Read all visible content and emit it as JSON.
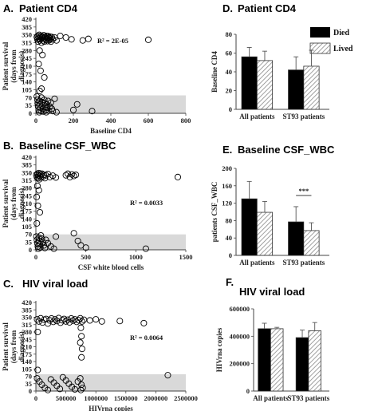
{
  "legend": {
    "died": "Died",
    "lived": "Lived"
  },
  "panels": {
    "A": {
      "label": "A.",
      "title": "Patient CD4"
    },
    "B": {
      "label": "B.",
      "title": "Baseline CSF_WBC"
    },
    "C": {
      "label": "C.",
      "title": "HIV viral load"
    },
    "D": {
      "label": "D.",
      "title": "Patient CD4"
    },
    "E": {
      "label": "E.",
      "title": "Baseline CSF_WBC"
    },
    "F": {
      "label": "F.",
      "title": "HIV viral load"
    }
  },
  "colors": {
    "died": "#000000",
    "lived_hatch": "#888888",
    "band": "#d9d9d9"
  },
  "chart_data": [
    {
      "id": "A",
      "type": "scatter",
      "title": "Patient CD4",
      "xlabel": "Baseline CD4",
      "ylabel": "Patient survival (days from diagnosis)",
      "xlim": [
        0,
        800
      ],
      "ylim": [
        0,
        420
      ],
      "xticks": [
        0,
        200,
        400,
        600,
        800
      ],
      "yticks": [
        0,
        35,
        70,
        105,
        140,
        175,
        210,
        245,
        280,
        315,
        350,
        385,
        420
      ],
      "band": [
        0,
        80
      ],
      "annotation": "R² = 2E-05",
      "points": [
        [
          5,
          340
        ],
        [
          8,
          330
        ],
        [
          10,
          345
        ],
        [
          12,
          320
        ],
        [
          15,
          335
        ],
        [
          18,
          350
        ],
        [
          20,
          325
        ],
        [
          22,
          340
        ],
        [
          25,
          330
        ],
        [
          28,
          345
        ],
        [
          30,
          315
        ],
        [
          32,
          338
        ],
        [
          35,
          342
        ],
        [
          38,
          325
        ],
        [
          40,
          335
        ],
        [
          42,
          348
        ],
        [
          45,
          320
        ],
        [
          48,
          332
        ],
        [
          50,
          340
        ],
        [
          55,
          328
        ],
        [
          58,
          345
        ],
        [
          60,
          336
        ],
        [
          62,
          322
        ],
        [
          65,
          344
        ],
        [
          68,
          330
        ],
        [
          70,
          338
        ],
        [
          72,
          326
        ],
        [
          75,
          342
        ],
        [
          78,
          334
        ],
        [
          80,
          320
        ],
        [
          85,
          340
        ],
        [
          90,
          330
        ],
        [
          100,
          338
        ],
        [
          110,
          325
        ],
        [
          130,
          345
        ],
        [
          160,
          338
        ],
        [
          190,
          330
        ],
        [
          250,
          325
        ],
        [
          280,
          332
        ],
        [
          600,
          328
        ],
        [
          20,
          280
        ],
        [
          35,
          260
        ],
        [
          15,
          220
        ],
        [
          25,
          190
        ],
        [
          45,
          160
        ],
        [
          5,
          75
        ],
        [
          8,
          60
        ],
        [
          10,
          45
        ],
        [
          12,
          30
        ],
        [
          15,
          15
        ],
        [
          18,
          5
        ],
        [
          20,
          55
        ],
        [
          22,
          40
        ],
        [
          25,
          25
        ],
        [
          28,
          10
        ],
        [
          30,
          70
        ],
        [
          32,
          50
        ],
        [
          35,
          35
        ],
        [
          38,
          20
        ],
        [
          40,
          8
        ],
        [
          45,
          60
        ],
        [
          48,
          45
        ],
        [
          50,
          30
        ],
        [
          52,
          15
        ],
        [
          55,
          5
        ],
        [
          58,
          40
        ],
        [
          60,
          25
        ],
        [
          65,
          55
        ],
        [
          70,
          12
        ],
        [
          75,
          30
        ],
        [
          80,
          48
        ],
        [
          85,
          20
        ],
        [
          90,
          10
        ],
        [
          100,
          65
        ],
        [
          110,
          5
        ],
        [
          20,
          100
        ],
        [
          30,
          110
        ],
        [
          200,
          15
        ],
        [
          220,
          40
        ],
        [
          300,
          10
        ]
      ]
    },
    {
      "id": "B",
      "type": "scatter",
      "title": "Baseline CSF_WBC",
      "xlabel": "CSF white blood cells",
      "ylabel": "Patient survival (days from diagnosis)",
      "xlim": [
        0,
        1500
      ],
      "ylim": [
        0,
        420
      ],
      "xticks": [
        0,
        500,
        1000,
        1500
      ],
      "yticks": [
        0,
        35,
        70,
        105,
        140,
        175,
        210,
        245,
        280,
        315,
        350,
        385,
        420
      ],
      "band": [
        0,
        70
      ],
      "annotation": "R² = 0.0033",
      "points": [
        [
          5,
          340
        ],
        [
          10,
          330
        ],
        [
          15,
          345
        ],
        [
          20,
          325
        ],
        [
          25,
          338
        ],
        [
          30,
          348
        ],
        [
          35,
          320
        ],
        [
          40,
          335
        ],
        [
          45,
          342
        ],
        [
          50,
          328
        ],
        [
          60,
          345
        ],
        [
          70,
          332
        ],
        [
          80,
          340
        ],
        [
          90,
          325
        ],
        [
          100,
          338
        ],
        [
          120,
          344
        ],
        [
          140,
          330
        ],
        [
          170,
          336
        ],
        [
          200,
          328
        ],
        [
          300,
          338
        ],
        [
          320,
          345
        ],
        [
          340,
          330
        ],
        [
          360,
          342
        ],
        [
          380,
          335
        ],
        [
          400,
          340
        ],
        [
          1420,
          330
        ],
        [
          15,
          290
        ],
        [
          30,
          270
        ],
        [
          8,
          240
        ],
        [
          20,
          200
        ],
        [
          40,
          170
        ],
        [
          10,
          120
        ],
        [
          5,
          60
        ],
        [
          10,
          45
        ],
        [
          15,
          30
        ],
        [
          20,
          15
        ],
        [
          25,
          5
        ],
        [
          30,
          55
        ],
        [
          35,
          40
        ],
        [
          40,
          25
        ],
        [
          45,
          10
        ],
        [
          50,
          65
        ],
        [
          60,
          50
        ],
        [
          70,
          35
        ],
        [
          80,
          20
        ],
        [
          90,
          8
        ],
        [
          100,
          45
        ],
        [
          120,
          30
        ],
        [
          150,
          15
        ],
        [
          180,
          5
        ],
        [
          380,
          75
        ],
        [
          420,
          40
        ],
        [
          450,
          20
        ],
        [
          500,
          10
        ],
        [
          1100,
          5
        ],
        [
          200,
          60
        ]
      ]
    },
    {
      "id": "C",
      "type": "scatter",
      "title": "HIV viral load",
      "xlabel": "HIVrna copies",
      "ylabel": "Patient survival (days from diagnosis)",
      "xlim": [
        0,
        2500000
      ],
      "ylim": [
        0,
        420
      ],
      "xticks": [
        0,
        500000,
        1000000,
        1500000,
        2000000,
        2500000
      ],
      "yticks": [
        0,
        35,
        70,
        105,
        140,
        175,
        210,
        245,
        280,
        315,
        350,
        385,
        420
      ],
      "band": [
        0,
        80
      ],
      "annotation": "R² = 0.0064",
      "points": [
        [
          20000,
          340
        ],
        [
          50000,
          330
        ],
        [
          80000,
          345
        ],
        [
          110000,
          325
        ],
        [
          140000,
          338
        ],
        [
          170000,
          342
        ],
        [
          200000,
          320
        ],
        [
          230000,
          335
        ],
        [
          260000,
          344
        ],
        [
          290000,
          328
        ],
        [
          320000,
          340
        ],
        [
          350000,
          332
        ],
        [
          380000,
          346
        ],
        [
          410000,
          324
        ],
        [
          440000,
          336
        ],
        [
          470000,
          342
        ],
        [
          500000,
          330
        ],
        [
          530000,
          338
        ],
        [
          560000,
          326
        ],
        [
          590000,
          344
        ],
        [
          620000,
          334
        ],
        [
          650000,
          340
        ],
        [
          680000,
          328
        ],
        [
          710000,
          336
        ],
        [
          740000,
          345
        ],
        [
          770000,
          330
        ],
        [
          800000,
          338
        ],
        [
          900000,
          335
        ],
        [
          1000000,
          340
        ],
        [
          1100000,
          330
        ],
        [
          1400000,
          332
        ],
        [
          1800000,
          322
        ],
        [
          750000,
          300
        ],
        [
          760000,
          260
        ],
        [
          740000,
          230
        ],
        [
          770000,
          200
        ],
        [
          760000,
          160
        ],
        [
          30000,
          280
        ],
        [
          20000,
          60
        ],
        [
          60000,
          45
        ],
        [
          100000,
          30
        ],
        [
          150000,
          15
        ],
        [
          200000,
          5
        ],
        [
          250000,
          55
        ],
        [
          300000,
          40
        ],
        [
          350000,
          25
        ],
        [
          400000,
          10
        ],
        [
          450000,
          65
        ],
        [
          500000,
          50
        ],
        [
          550000,
          35
        ],
        [
          600000,
          20
        ],
        [
          650000,
          8
        ],
        [
          700000,
          45
        ],
        [
          740000,
          60
        ],
        [
          760000,
          30
        ],
        [
          780000,
          15
        ],
        [
          750000,
          5
        ],
        [
          2200000,
          75
        ],
        [
          30000,
          100
        ]
      ]
    },
    {
      "id": "D",
      "type": "bar",
      "title": "Patient CD4",
      "ylabel": "Baseline CD4",
      "categories": [
        "All patients",
        "ST93 patients"
      ],
      "ylim": [
        0,
        80
      ],
      "yticks": [
        0,
        20,
        40,
        60,
        80
      ],
      "series": [
        {
          "name": "Died",
          "values": [
            56,
            42
          ],
          "errors": [
            10,
            14
          ]
        },
        {
          "name": "Lived",
          "values": [
            52,
            46
          ],
          "errors": [
            10,
            17
          ]
        }
      ]
    },
    {
      "id": "E",
      "type": "bar",
      "title": "Baseline CSF_WBC",
      "ylabel": "patients CSF_WBC",
      "categories": [
        "All patients",
        "ST93 patients"
      ],
      "ylim": [
        0,
        200
      ],
      "yticks": [
        0,
        40,
        80,
        120,
        160,
        200
      ],
      "annotation": "***",
      "series": [
        {
          "name": "Died",
          "values": [
            130,
            77
          ],
          "errors": [
            40,
            35
          ]
        },
        {
          "name": "Lived",
          "values": [
            99,
            57
          ],
          "errors": [
            25,
            18
          ]
        }
      ]
    },
    {
      "id": "F",
      "type": "bar",
      "title": "HIV viral load",
      "ylabel": "HIVrna copies",
      "categories": [
        "All patients",
        "ST93 patients"
      ],
      "ylim": [
        0,
        600000
      ],
      "yticks": [
        0,
        200000,
        400000,
        600000
      ],
      "series": [
        {
          "name": "Died",
          "values": [
            455000,
            390000
          ],
          "errors": [
            40000,
            55000
          ]
        },
        {
          "name": "Lived",
          "values": [
            455000,
            440000
          ],
          "errors": [
            10000,
            60000
          ]
        }
      ]
    }
  ]
}
